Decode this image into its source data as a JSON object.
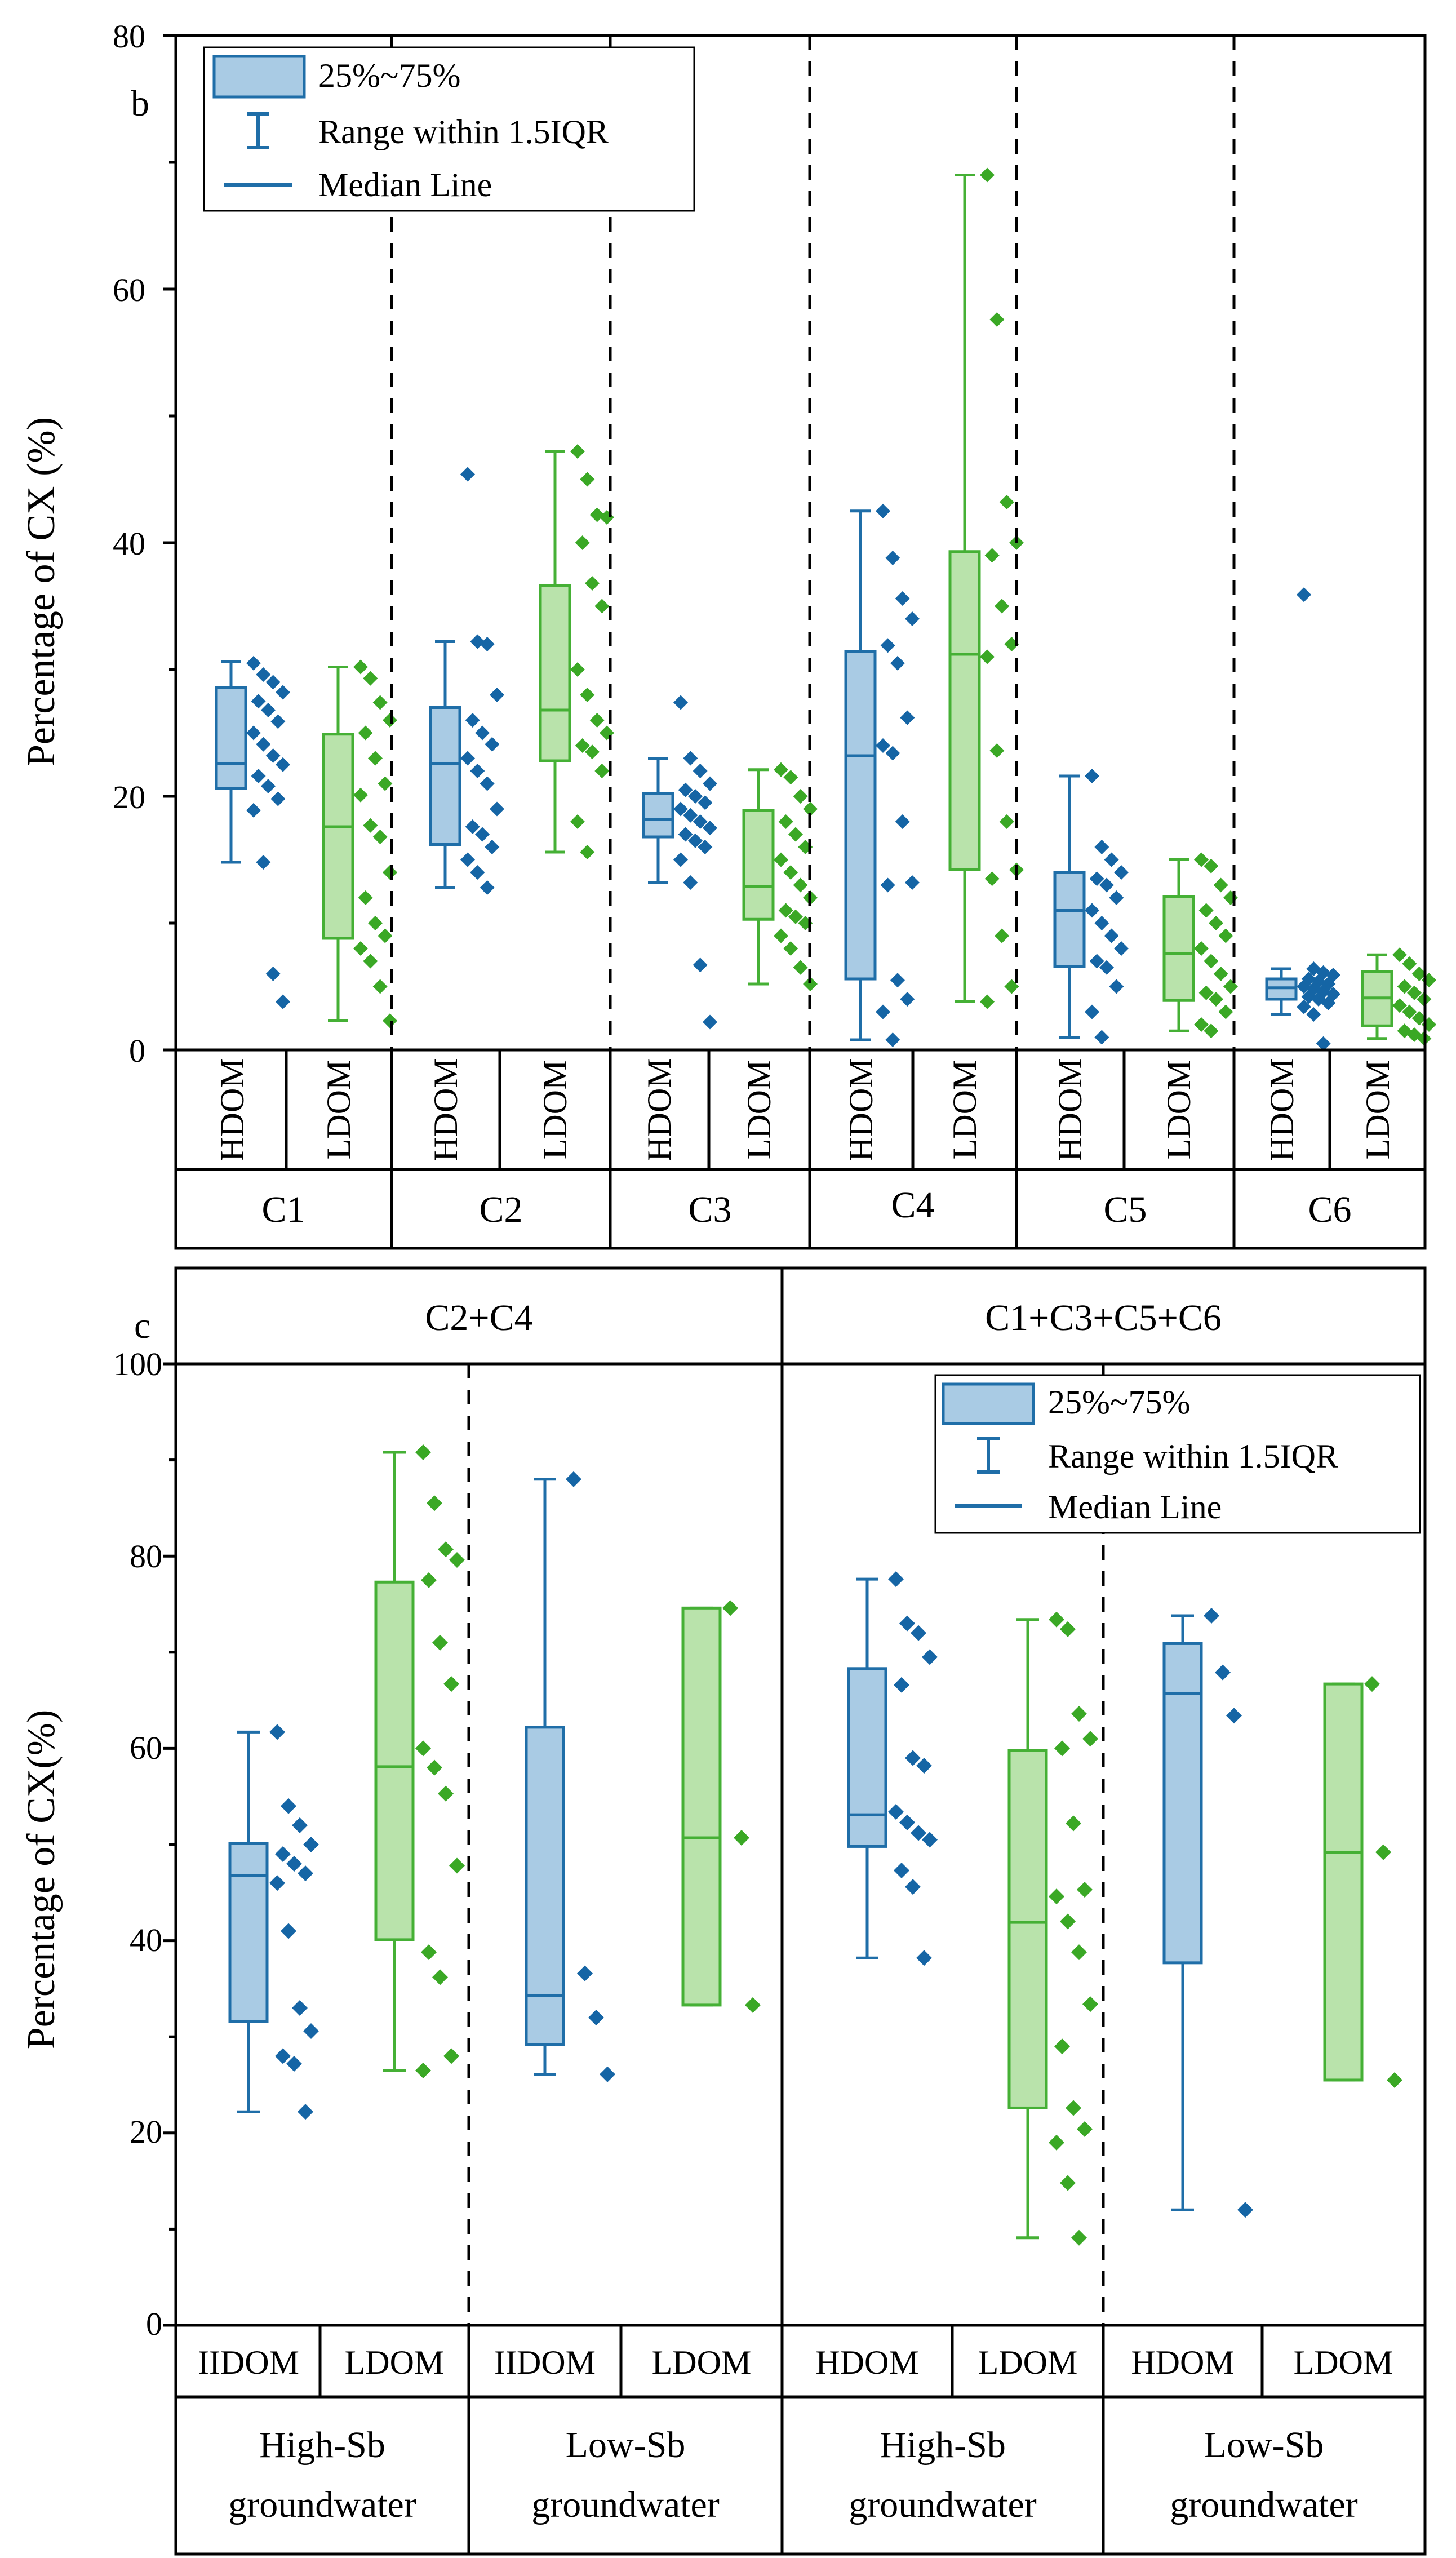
{
  "colors": {
    "hdom_fill": "#a9cbe4",
    "hdom_stroke": "#1f6ea8",
    "hdom_point": "#1565a5",
    "ldom_fill": "#b9e3ab",
    "ldom_stroke": "#45b035",
    "ldom_point": "#3aa825"
  },
  "chart_data": [
    {
      "type": "box",
      "panel_label": "b",
      "ylabel": "Percentage of CX (%)",
      "ylim": [
        0,
        80
      ],
      "yticks": [
        "0",
        "20",
        "40",
        "60",
        "80"
      ],
      "legend": {
        "location": "top-left",
        "items": [
          "25%~75%",
          "Range within 1.5IQR",
          "Median Line"
        ]
      },
      "groups": [
        {
          "label": "C1",
          "series": [
            {
              "name": "HDOM",
              "q1": 20.6,
              "median": 22.6,
              "q3": 28.6,
              "whisker_low": 14.8,
              "whisker_high": 30.6,
              "points": [
                30.5,
                29.6,
                29.0,
                28.2,
                27.5,
                26.8,
                25.9,
                25.0,
                24.1,
                23.2,
                22.5,
                21.6,
                20.8,
                19.8,
                18.9,
                14.8,
                6.0,
                3.8
              ]
            },
            {
              "name": "LDOM",
              "q1": 8.8,
              "median": 17.6,
              "q3": 24.9,
              "whisker_low": 2.3,
              "whisker_high": 30.2,
              "points": [
                30.2,
                29.3,
                27.4,
                26.0,
                25.0,
                23.0,
                21.0,
                20.1,
                17.7,
                16.8,
                14.0,
                12.0,
                10.0,
                9.0,
                8.0,
                7.0,
                5.0,
                2.3
              ]
            }
          ]
        },
        {
          "label": "C2",
          "series": [
            {
              "name": "HDOM",
              "q1": 16.2,
              "median": 22.6,
              "q3": 27.0,
              "whisker_low": 12.8,
              "whisker_high": 32.2,
              "points": [
                45.4,
                32.2,
                32.0,
                28.0,
                26.0,
                25.0,
                24.1,
                23.0,
                22.0,
                21.0,
                19.0,
                17.6,
                17.0,
                16.0,
                15.0,
                14.0,
                12.8
              ]
            },
            {
              "name": "LDOM",
              "q1": 22.8,
              "median": 26.8,
              "q3": 36.6,
              "whisker_low": 15.6,
              "whisker_high": 47.2,
              "points": [
                47.2,
                45.0,
                42.2,
                42.0,
                40.0,
                36.8,
                35.0,
                30.0,
                28.0,
                26.0,
                25.0,
                24.0,
                23.5,
                22.0,
                18.0,
                15.6
              ]
            }
          ]
        },
        {
          "label": "C3",
          "series": [
            {
              "name": "HDOM",
              "q1": 16.8,
              "median": 18.2,
              "q3": 20.2,
              "whisker_low": 13.2,
              "whisker_high": 23.0,
              "points": [
                27.4,
                23.0,
                22.0,
                21.0,
                20.5,
                20.0,
                19.5,
                19.0,
                18.5,
                18.0,
                17.5,
                17.0,
                16.5,
                16.0,
                15.0,
                13.2,
                6.7,
                2.2
              ]
            },
            {
              "name": "LDOM",
              "q1": 10.3,
              "median": 12.9,
              "q3": 18.9,
              "whisker_low": 5.2,
              "whisker_high": 22.1,
              "points": [
                22.1,
                21.5,
                20.0,
                19.0,
                18.0,
                17.0,
                16.0,
                15.0,
                14.0,
                13.0,
                12.0,
                11.0,
                10.5,
                10.0,
                9.0,
                8.0,
                6.5,
                5.2
              ]
            }
          ]
        },
        {
          "label": "C4",
          "series": [
            {
              "name": "HDOM",
              "q1": 5.6,
              "median": 23.2,
              "q3": 31.4,
              "whisker_low": 0.8,
              "whisker_high": 42.5,
              "points": [
                42.5,
                38.8,
                35.6,
                34.0,
                31.9,
                30.5,
                26.2,
                24.0,
                23.4,
                18.0,
                13.2,
                13.0,
                5.5,
                4.0,
                3.0,
                0.8
              ]
            },
            {
              "name": "LDOM",
              "q1": 14.2,
              "median": 31.2,
              "q3": 39.3,
              "whisker_low": 3.8,
              "whisker_high": 69.0,
              "points": [
                69.0,
                57.6,
                43.2,
                40.0,
                39.0,
                35.0,
                32.0,
                31.0,
                23.6,
                18.0,
                14.2,
                13.5,
                9.0,
                5.0,
                3.8
              ]
            }
          ]
        },
        {
          "label": "C5",
          "series": [
            {
              "name": "HDOM",
              "q1": 6.6,
              "median": 11.0,
              "q3": 14.0,
              "whisker_low": 1.0,
              "whisker_high": 21.6,
              "points": [
                21.6,
                16.0,
                15.0,
                14.0,
                13.5,
                13.0,
                12.0,
                11.0,
                10.0,
                9.0,
                8.0,
                7.0,
                6.5,
                5.0,
                3.0,
                1.0
              ]
            },
            {
              "name": "LDOM",
              "q1": 3.9,
              "median": 7.6,
              "q3": 12.1,
              "whisker_low": 1.5,
              "whisker_high": 15.0,
              "points": [
                15.0,
                14.5,
                13.0,
                12.0,
                11.0,
                10.0,
                9.0,
                8.0,
                7.0,
                6.0,
                5.0,
                4.5,
                4.0,
                3.0,
                2.0,
                1.5
              ]
            }
          ]
        },
        {
          "label": "C6",
          "series": [
            {
              "name": "HDOM",
              "q1": 4.0,
              "median": 4.9,
              "q3": 5.6,
              "whisker_low": 2.8,
              "whisker_high": 6.4,
              "points": [
                35.9,
                6.4,
                6.1,
                5.9,
                5.6,
                5.4,
                5.2,
                5.0,
                4.8,
                4.6,
                4.4,
                4.2,
                4.0,
                3.7,
                3.4,
                2.8,
                0.5
              ]
            },
            {
              "name": "LDOM",
              "q1": 1.9,
              "median": 4.1,
              "q3": 6.2,
              "whisker_low": 0.9,
              "whisker_high": 7.5,
              "points": [
                7.5,
                6.8,
                6.0,
                5.5,
                5.0,
                4.5,
                4.0,
                3.5,
                3.0,
                2.5,
                2.0,
                1.5,
                1.2,
                0.9
              ]
            }
          ]
        }
      ]
    },
    {
      "type": "box",
      "panel_label": "c",
      "ylabel": "Percentage of CX(%)",
      "ylim": [
        0,
        100
      ],
      "yticks": [
        "0",
        "20",
        "40",
        "60",
        "80",
        "100"
      ],
      "legend": {
        "location": "top-right",
        "items": [
          "25%~75%",
          "Range within 1.5IQR",
          "Median Line"
        ]
      },
      "super_groups": [
        {
          "label": "C2+C4"
        },
        {
          "label": "C1+C3+C5+C6"
        }
      ],
      "groups": [
        {
          "label_line1": "High-Sb",
          "label_line2": "groundwater",
          "series": [
            {
              "name": "IIDOM",
              "q1": 31.6,
              "median": 46.8,
              "q3": 50.1,
              "whisker_low": 22.2,
              "whisker_high": 61.7,
              "points": [
                61.7,
                54.0,
                52.0,
                50.0,
                49.0,
                48.0,
                47.0,
                46.0,
                41.0,
                33.0,
                30.6,
                28.0,
                27.2,
                22.2
              ]
            },
            {
              "name": "LDOM",
              "q1": 40.1,
              "median": 58.1,
              "q3": 77.3,
              "whisker_low": 26.5,
              "whisker_high": 90.8,
              "points": [
                90.8,
                85.5,
                80.7,
                79.6,
                77.5,
                71.0,
                66.7,
                60.0,
                58.0,
                55.3,
                47.8,
                38.8,
                36.2,
                28.0,
                26.5
              ]
            }
          ]
        },
        {
          "label_line1": "Low-Sb",
          "label_line2": "groundwater",
          "series": [
            {
              "name": "IIDOM",
              "q1": 29.2,
              "median": 34.3,
              "q3": 62.2,
              "whisker_low": 26.1,
              "whisker_high": 88.0,
              "points": [
                88.0,
                36.6,
                32.0,
                26.1
              ]
            },
            {
              "name": "LDOM",
              "q1": 33.3,
              "median": 50.7,
              "q3": 74.6,
              "whisker_low": 33.3,
              "whisker_high": 74.6,
              "points": [
                74.6,
                50.7,
                33.3
              ]
            }
          ]
        },
        {
          "label_line1": "High-Sb",
          "label_line2": "groundwater",
          "series": [
            {
              "name": "HDOM",
              "q1": 49.8,
              "median": 53.1,
              "q3": 68.3,
              "whisker_low": 38.2,
              "whisker_high": 77.6,
              "points": [
                77.6,
                73.0,
                72.0,
                69.5,
                66.6,
                59.0,
                58.2,
                53.4,
                52.3,
                51.2,
                50.5,
                47.3,
                45.6,
                38.2
              ]
            },
            {
              "name": "LDOM",
              "q1": 22.6,
              "median": 41.9,
              "q3": 59.8,
              "whisker_low": 9.1,
              "whisker_high": 73.4,
              "points": [
                73.4,
                72.4,
                63.6,
                61.0,
                60.0,
                52.2,
                45.3,
                44.6,
                42.0,
                38.8,
                33.4,
                29.0,
                22.6,
                20.4,
                19.0,
                14.8,
                9.1
              ]
            }
          ]
        },
        {
          "label_line1": "Low-Sb",
          "label_line2": "groundwater",
          "series": [
            {
              "name": "HDOM",
              "q1": 37.7,
              "median": 65.7,
              "q3": 70.9,
              "whisker_low": 12.0,
              "whisker_high": 73.8,
              "points": [
                73.8,
                67.9,
                63.4,
                12.0
              ]
            },
            {
              "name": "LDOM",
              "q1": 25.5,
              "median": 49.2,
              "q3": 66.7,
              "whisker_low": 25.5,
              "whisker_high": 66.7,
              "points": [
                66.7,
                49.2,
                25.5
              ]
            }
          ]
        }
      ]
    }
  ]
}
